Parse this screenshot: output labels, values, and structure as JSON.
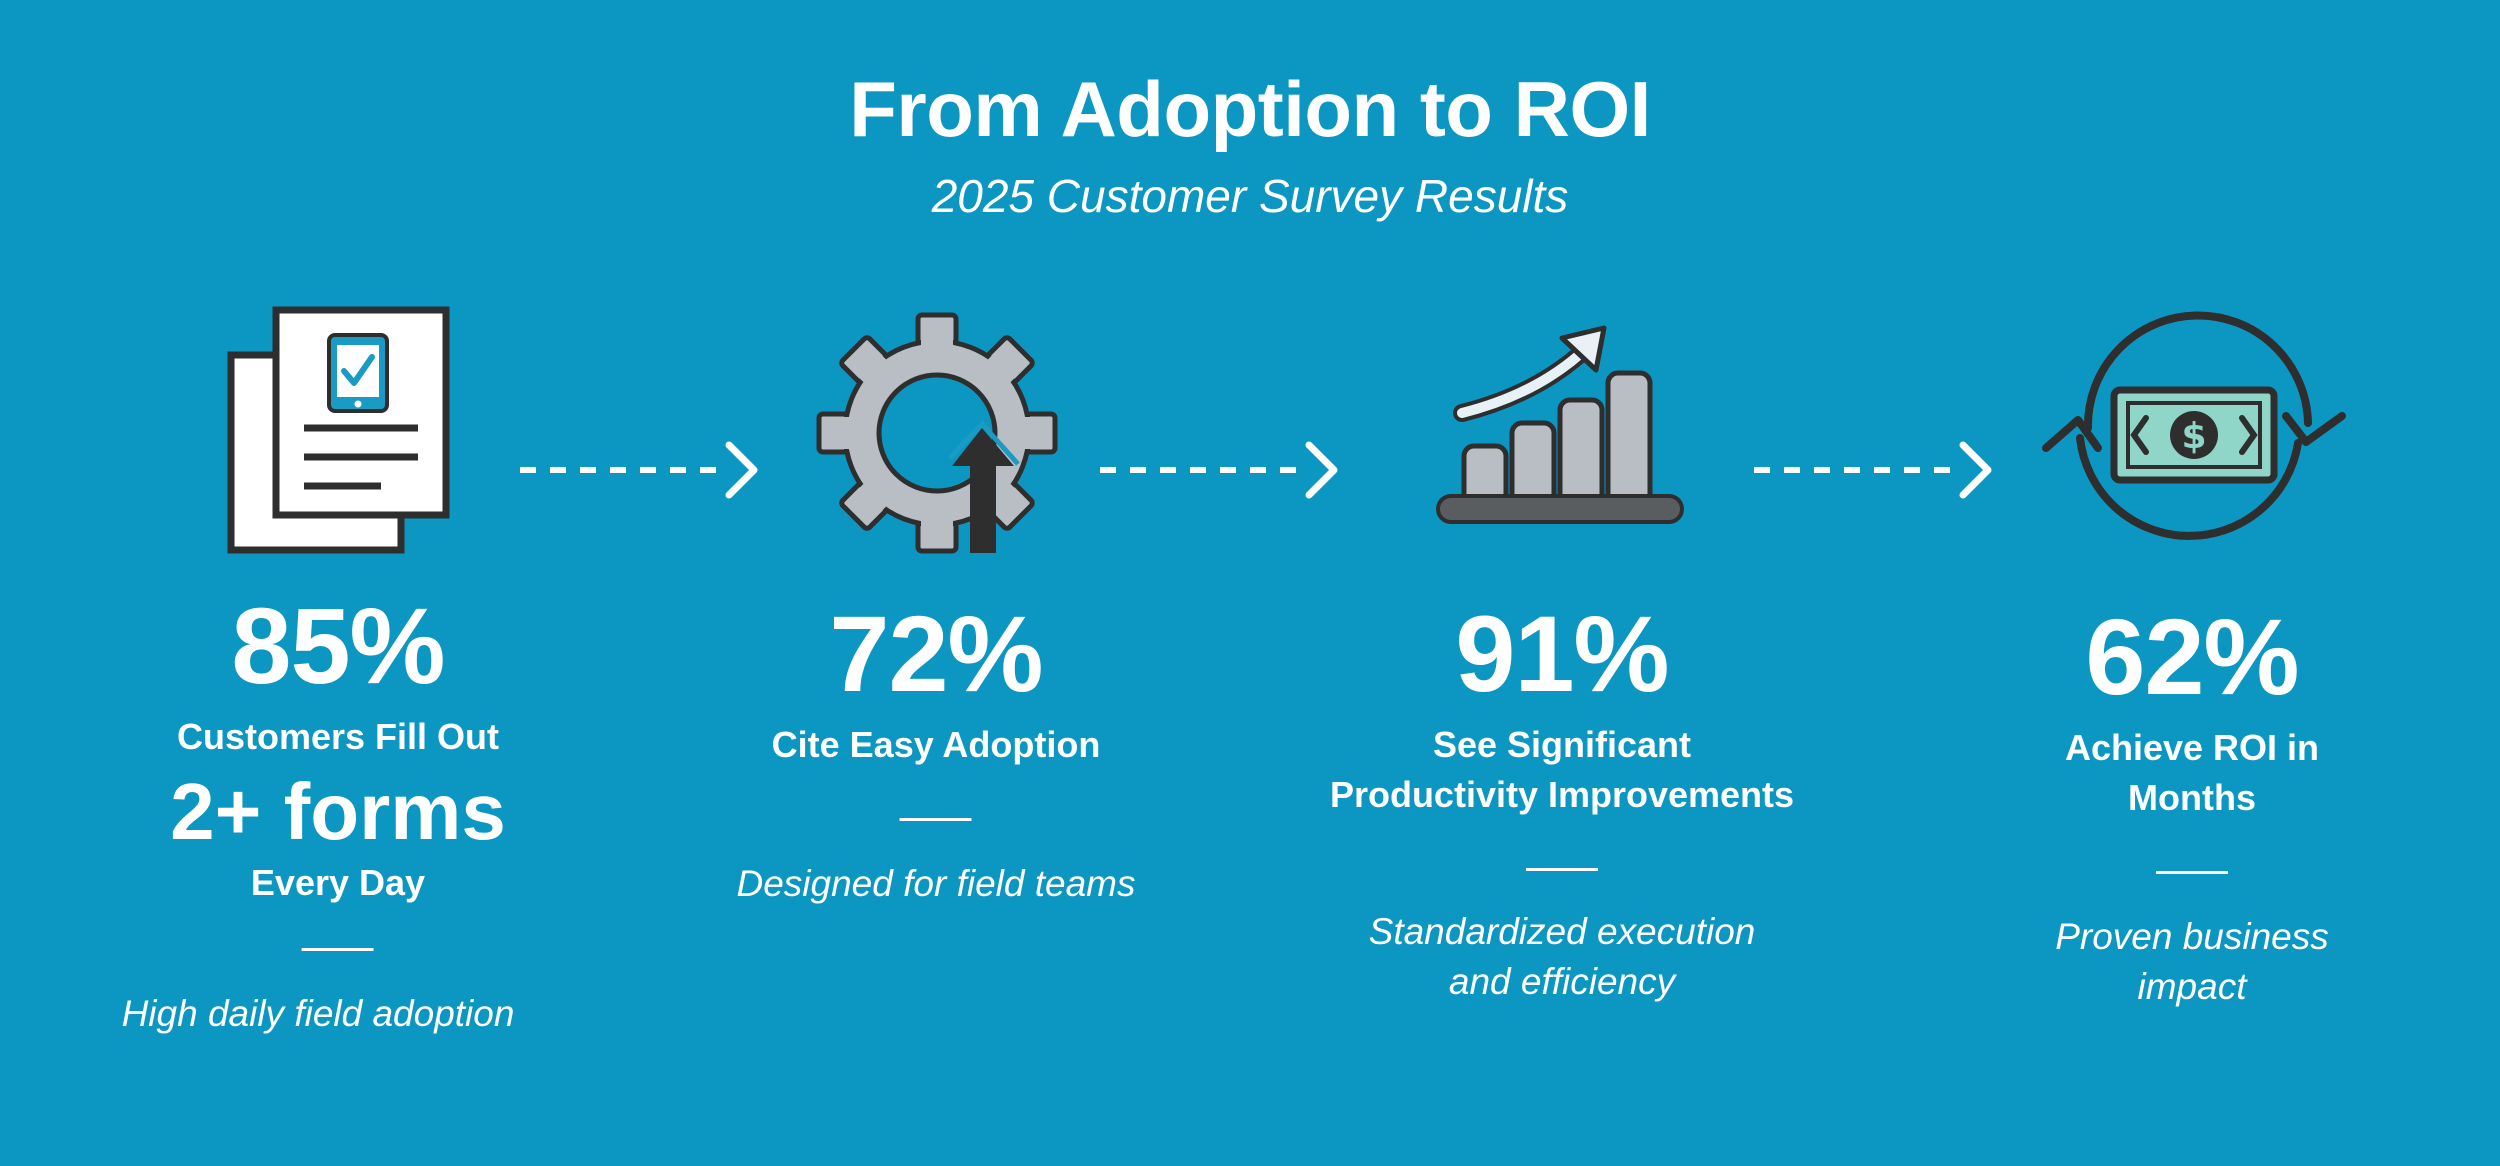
{
  "header": {
    "title": "From Adoption to ROI",
    "subtitle": "2025 Customer Survey Results"
  },
  "stats": [
    {
      "icon": "forms-icon",
      "value": "85%",
      "label_top": "Customers Fill Out",
      "highlight": "2+ forms",
      "label_bottom": "Every Day",
      "note": "High daily field adoption"
    },
    {
      "icon": "gear-arrow-icon",
      "value": "72%",
      "label": "Cite Easy Adoption",
      "note": "Designed for field teams"
    },
    {
      "icon": "growth-chart-icon",
      "value": "91%",
      "label_line1": "See Significant",
      "label_line2": "Productivity Improvements",
      "note_line1": "Standardized execution",
      "note_line2": "and efficiency"
    },
    {
      "icon": "money-cycle-icon",
      "value": "62%",
      "label": "Achieve ROI in Months",
      "note": "Proven business impact"
    }
  ],
  "colors": {
    "background": "#0c97c2",
    "icon_dark": "#2e2e2e",
    "icon_gray": "#b8bec3",
    "icon_accent": "#1a9bc4",
    "money_green": "#8fd6c8"
  }
}
